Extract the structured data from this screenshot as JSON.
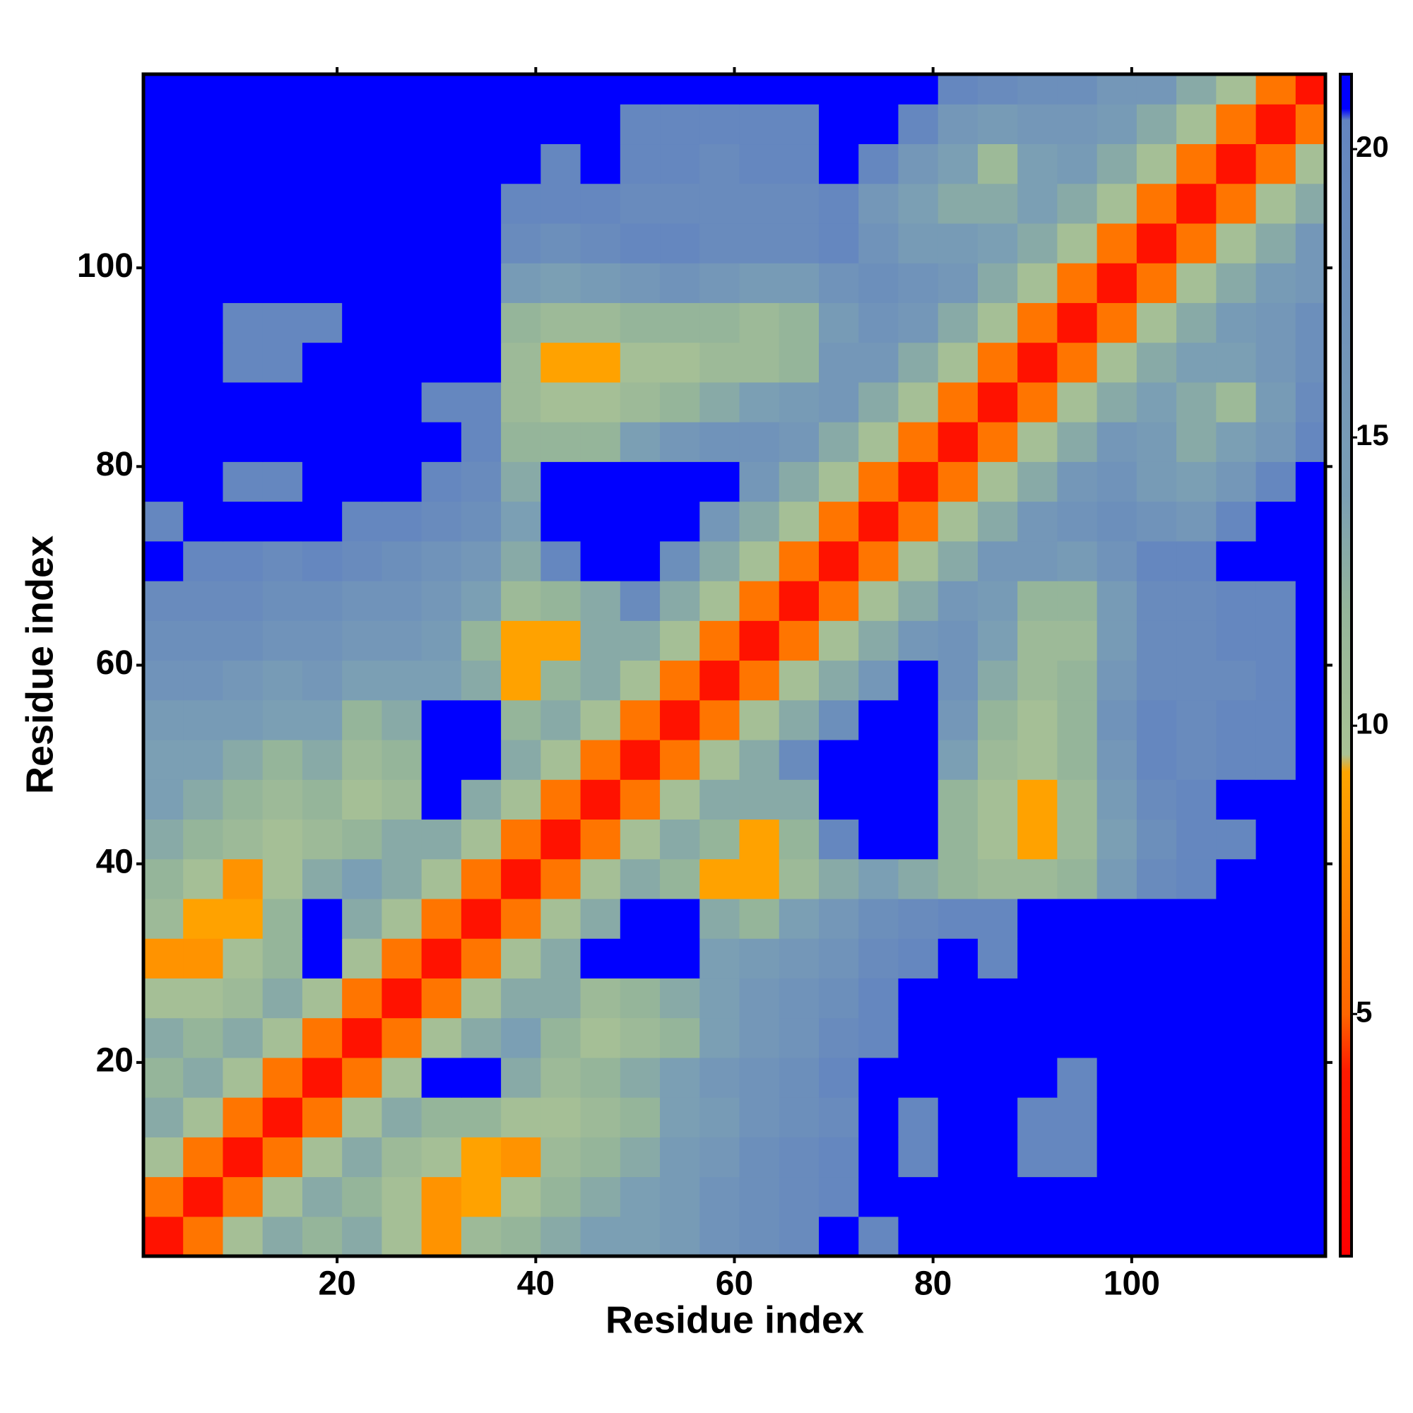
{
  "chart_data": {
    "type": "heatmap",
    "x_label": "Residue index",
    "y_label": "Residue index",
    "xlim": [
      0.5,
      119.5
    ],
    "ylim": [
      0.5,
      119.5
    ],
    "xticks": [
      20,
      40,
      60,
      80,
      100
    ],
    "yticks": [
      20,
      40,
      60,
      80,
      100
    ],
    "zlim": [
      0.8,
      21.3
    ],
    "zticks": [
      5,
      10,
      15,
      20
    ],
    "colorscale": [
      [
        0.8,
        "#ff0000"
      ],
      [
        4,
        "#ff1a00"
      ],
      [
        5,
        "#ff6600"
      ],
      [
        9.2,
        "#ffa500"
      ],
      [
        9.5,
        "#a9c295"
      ],
      [
        12,
        "#95b59a"
      ],
      [
        14,
        "#7b9fb4"
      ],
      [
        20.5,
        "#6385c0"
      ],
      [
        20.7,
        "#0000ff"
      ],
      [
        21.3,
        "#0000ff"
      ]
    ],
    "x_edges": [
      0.5,
      4.5,
      8.5,
      12.5,
      16.5,
      20.5,
      24.5,
      28.5,
      32.5,
      36.5,
      40.5,
      44.5,
      48.5,
      52.5,
      56.5,
      60.5,
      64.5,
      68.5,
      72.5,
      76.5,
      80.5,
      84.5,
      88.5,
      92.5,
      96.5,
      100.5,
      104.5,
      108.5,
      112.5,
      116.5,
      119.5
    ],
    "y_edges": [
      0.5,
      4.5,
      8.5,
      12.5,
      16.5,
      20.5,
      24.5,
      28.5,
      32.5,
      36.5,
      40.5,
      44.5,
      48.5,
      52.5,
      56.5,
      60.5,
      64.5,
      68.5,
      72.5,
      76.5,
      80.5,
      84.5,
      88.5,
      92.5,
      96.5,
      100.5,
      104.5,
      108.5,
      112.5,
      116.5,
      119.5
    ],
    "z": [
      [
        3,
        6,
        10,
        13,
        12,
        13,
        10,
        8,
        11,
        12,
        13,
        14,
        14,
        15,
        17,
        18,
        19,
        21,
        20,
        21,
        21,
        21,
        21,
        21,
        21,
        21,
        21,
        21,
        21,
        21
      ],
      [
        6,
        3,
        6,
        10,
        13,
        12,
        10,
        8,
        9,
        10,
        12,
        13,
        14,
        15,
        17,
        18,
        19,
        20,
        21,
        21,
        21,
        21,
        21,
        21,
        21,
        21,
        21,
        21,
        21,
        21
      ],
      [
        10,
        6,
        3,
        6,
        10,
        13,
        11,
        10,
        9,
        8,
        11,
        12,
        13,
        15,
        16,
        18,
        19,
        20,
        21,
        20,
        21,
        21,
        20,
        20,
        21,
        21,
        21,
        21,
        21,
        21
      ],
      [
        13,
        10,
        6,
        3,
        6,
        10,
        13,
        12,
        12,
        10,
        10,
        11,
        12,
        14,
        15,
        17,
        18,
        19,
        21,
        20,
        21,
        21,
        20,
        20,
        21,
        21,
        21,
        21,
        21,
        21
      ],
      [
        12,
        13,
        10,
        6,
        3,
        6,
        10,
        21,
        21,
        13,
        11,
        12,
        13,
        14,
        16,
        17,
        18,
        20,
        21,
        21,
        21,
        21,
        21,
        20,
        21,
        21,
        21,
        21,
        21,
        21
      ],
      [
        13,
        12,
        13,
        10,
        6,
        3,
        6,
        10,
        13,
        14,
        12,
        10,
        11,
        12,
        14,
        16,
        17,
        19,
        20,
        21,
        21,
        21,
        21,
        21,
        21,
        21,
        21,
        21,
        21,
        21
      ],
      [
        10,
        10,
        11,
        13,
        10,
        6,
        3,
        6,
        10,
        13,
        13,
        11,
        12,
        13,
        14,
        16,
        17,
        18,
        20,
        21,
        21,
        21,
        21,
        21,
        21,
        21,
        21,
        21,
        21,
        21
      ],
      [
        8,
        8,
        10,
        12,
        21,
        10,
        6,
        3,
        6,
        10,
        13,
        21,
        21,
        21,
        14,
        15,
        16,
        17,
        19,
        20,
        21,
        20,
        21,
        21,
        21,
        21,
        21,
        21,
        21,
        21
      ],
      [
        11,
        9,
        9,
        12,
        21,
        13,
        10,
        6,
        3,
        6,
        10,
        13,
        21,
        21,
        13,
        12,
        14,
        16,
        18,
        19,
        20,
        20,
        21,
        21,
        21,
        21,
        21,
        21,
        21,
        21
      ],
      [
        12,
        10,
        8,
        10,
        13,
        14,
        13,
        10,
        6,
        3,
        6,
        10,
        13,
        12,
        9,
        9,
        11,
        13,
        14,
        13,
        12,
        11,
        11,
        12,
        15,
        19,
        20,
        21,
        21,
        21
      ],
      [
        13,
        12,
        11,
        10,
        11,
        12,
        13,
        13,
        10,
        6,
        3,
        6,
        10,
        13,
        12,
        9,
        12,
        20,
        21,
        21,
        12,
        10,
        9,
        11,
        14,
        18,
        20,
        20,
        21,
        21
      ],
      [
        14,
        13,
        12,
        11,
        12,
        10,
        11,
        21,
        13,
        10,
        6,
        3,
        6,
        10,
        13,
        13,
        13,
        21,
        21,
        21,
        12,
        10,
        9,
        11,
        15,
        19,
        20,
        21,
        21,
        21
      ],
      [
        14,
        14,
        13,
        12,
        13,
        11,
        12,
        21,
        21,
        13,
        10,
        6,
        3,
        6,
        10,
        13,
        19,
        21,
        21,
        21,
        14,
        11,
        10,
        12,
        16,
        20,
        19,
        20,
        20,
        21
      ],
      [
        15,
        15,
        15,
        14,
        14,
        12,
        13,
        21,
        21,
        12,
        13,
        10,
        6,
        3,
        6,
        10,
        13,
        18,
        21,
        21,
        16,
        12,
        10,
        12,
        17,
        20,
        19,
        20,
        20,
        21
      ],
      [
        17,
        17,
        16,
        15,
        16,
        14,
        14,
        14,
        13,
        9,
        12,
        13,
        10,
        6,
        3,
        6,
        10,
        13,
        16,
        21,
        17,
        13,
        11,
        12,
        16,
        19,
        19,
        19,
        20,
        21
      ],
      [
        18,
        18,
        18,
        17,
        17,
        16,
        16,
        15,
        12,
        9,
        9,
        13,
        13,
        10,
        6,
        3,
        6,
        10,
        13,
        16,
        17,
        14,
        11,
        11,
        15,
        19,
        19,
        20,
        20,
        21
      ],
      [
        19,
        19,
        19,
        18,
        18,
        17,
        17,
        16,
        14,
        11,
        12,
        13,
        19,
        13,
        10,
        6,
        3,
        6,
        10,
        13,
        16,
        15,
        12,
        12,
        15,
        19,
        19,
        20,
        20,
        21
      ],
      [
        21,
        20,
        20,
        19,
        20,
        19,
        18,
        17,
        16,
        13,
        20,
        21,
        21,
        18,
        13,
        10,
        6,
        3,
        6,
        10,
        13,
        16,
        16,
        15,
        17,
        20,
        20,
        21,
        21,
        21
      ],
      [
        20,
        21,
        21,
        21,
        21,
        20,
        20,
        19,
        18,
        14,
        21,
        21,
        21,
        21,
        16,
        13,
        10,
        6,
        3,
        6,
        10,
        13,
        16,
        17,
        18,
        17,
        16,
        20,
        21,
        21
      ],
      [
        21,
        21,
        20,
        20,
        21,
        21,
        21,
        20,
        19,
        13,
        21,
        21,
        21,
        21,
        21,
        16,
        13,
        10,
        6,
        3,
        6,
        10,
        13,
        16,
        17,
        15,
        14,
        16,
        20,
        21
      ],
      [
        21,
        21,
        21,
        21,
        21,
        21,
        21,
        21,
        20,
        12,
        12,
        12,
        14,
        16,
        17,
        17,
        16,
        13,
        10,
        6,
        3,
        6,
        10,
        13,
        16,
        15,
        13,
        14,
        16,
        20
      ],
      [
        21,
        21,
        21,
        21,
        21,
        21,
        21,
        20,
        20,
        11,
        10,
        10,
        11,
        12,
        13,
        14,
        15,
        16,
        13,
        10,
        6,
        3,
        6,
        10,
        13,
        14,
        13,
        11,
        15,
        19
      ],
      [
        21,
        21,
        20,
        20,
        21,
        21,
        21,
        21,
        21,
        11,
        9,
        9,
        10,
        10,
        11,
        11,
        12,
        16,
        16,
        13,
        10,
        6,
        3,
        6,
        10,
        13,
        14,
        14,
        16,
        18
      ],
      [
        21,
        21,
        20,
        20,
        20,
        21,
        21,
        21,
        21,
        12,
        11,
        11,
        12,
        12,
        12,
        11,
        12,
        15,
        17,
        16,
        13,
        10,
        6,
        3,
        6,
        10,
        13,
        15,
        16,
        18
      ],
      [
        21,
        21,
        21,
        21,
        21,
        21,
        21,
        21,
        21,
        15,
        14,
        15,
        16,
        17,
        16,
        15,
        15,
        17,
        18,
        17,
        16,
        13,
        10,
        6,
        3,
        6,
        10,
        13,
        15,
        16
      ],
      [
        21,
        21,
        21,
        21,
        21,
        21,
        21,
        21,
        21,
        19,
        18,
        19,
        20,
        20,
        19,
        19,
        19,
        20,
        17,
        15,
        15,
        14,
        13,
        10,
        6,
        3,
        6,
        10,
        13,
        16
      ],
      [
        21,
        21,
        21,
        21,
        21,
        21,
        21,
        21,
        21,
        20,
        20,
        20,
        19,
        19,
        19,
        19,
        19,
        20,
        16,
        14,
        13,
        13,
        14,
        13,
        10,
        6,
        3,
        6,
        10,
        13
      ],
      [
        21,
        21,
        21,
        21,
        21,
        21,
        21,
        21,
        21,
        21,
        20,
        21,
        20,
        20,
        19,
        20,
        20,
        21,
        20,
        16,
        14,
        11,
        14,
        15,
        13,
        10,
        6,
        3,
        6,
        10
      ],
      [
        21,
        21,
        21,
        21,
        21,
        21,
        21,
        21,
        21,
        21,
        21,
        21,
        20,
        20,
        20,
        20,
        20,
        21,
        21,
        20,
        16,
        15,
        16,
        16,
        15,
        13,
        10,
        6,
        3,
        6
      ],
      [
        21,
        21,
        21,
        21,
        21,
        21,
        21,
        21,
        21,
        21,
        21,
        21,
        21,
        21,
        21,
        21,
        21,
        21,
        21,
        21,
        20,
        19,
        18,
        18,
        16,
        16,
        13,
        10,
        6,
        3
      ]
    ]
  }
}
